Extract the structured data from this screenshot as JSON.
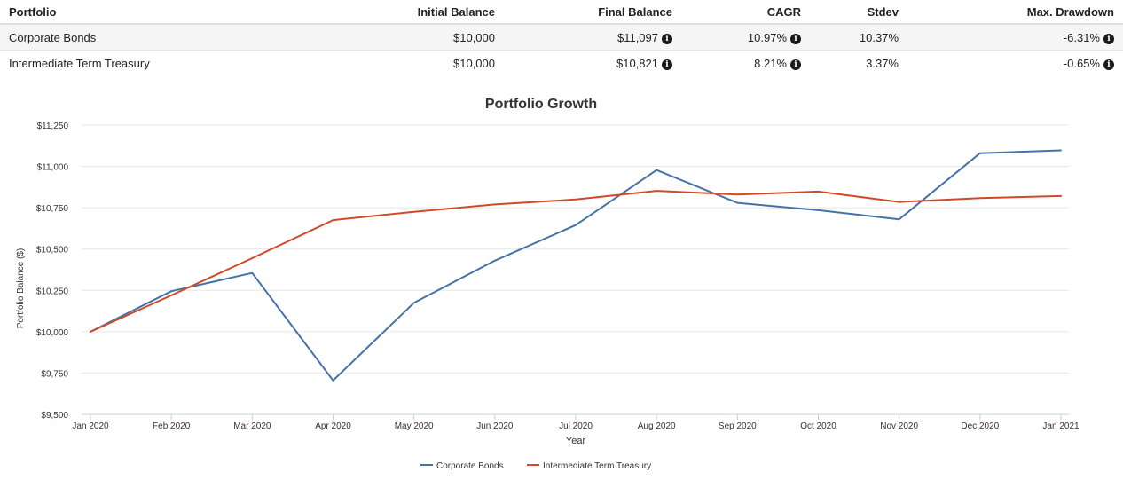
{
  "table": {
    "headers": [
      "Portfolio",
      "Initial Balance",
      "Final Balance",
      "CAGR",
      "Stdev",
      "Max. Drawdown"
    ],
    "rows": [
      {
        "portfolio": "Corporate Bonds",
        "initial": "$10,000",
        "final": "$11,097",
        "cagr": "10.97%",
        "stdev": "10.37%",
        "drawdown": "-6.31%"
      },
      {
        "portfolio": "Intermediate Term Treasury",
        "initial": "$10,000",
        "final": "$10,821",
        "cagr": "8.21%",
        "stdev": "3.37%",
        "drawdown": "-0.65%"
      }
    ],
    "info_icon_glyph": "i"
  },
  "chart_data": {
    "type": "line",
    "title": "Portfolio Growth",
    "xlabel": "Year",
    "ylabel": "Portfolio Balance ($)",
    "categories": [
      "Jan 2020",
      "Feb 2020",
      "Mar 2020",
      "Apr 2020",
      "May 2020",
      "Jun 2020",
      "Jul 2020",
      "Aug 2020",
      "Sep 2020",
      "Oct 2020",
      "Nov 2020",
      "Dec 2020",
      "Jan 2021"
    ],
    "y_ticks": [
      "$9,500",
      "$9,750",
      "$10,000",
      "$10,250",
      "$10,500",
      "$10,750",
      "$11,000",
      "$11,250"
    ],
    "y_tick_values": [
      9500,
      9750,
      10000,
      10250,
      10500,
      10750,
      11000,
      11250
    ],
    "ylim": [
      9500,
      11250
    ],
    "grid": true,
    "legend_position": "bottom",
    "series": [
      {
        "name": "Corporate Bonds",
        "color": "#4572a7",
        "values": [
          10000,
          10245,
          10355,
          9705,
          10175,
          10430,
          10645,
          10978,
          10780,
          10735,
          10680,
          11080,
          11097
        ]
      },
      {
        "name": "Intermediate Term Treasury",
        "color": "#d04a27",
        "values": [
          10000,
          10220,
          10445,
          10675,
          10725,
          10770,
          10800,
          10852,
          10830,
          10848,
          10785,
          10808,
          10821
        ]
      }
    ]
  }
}
